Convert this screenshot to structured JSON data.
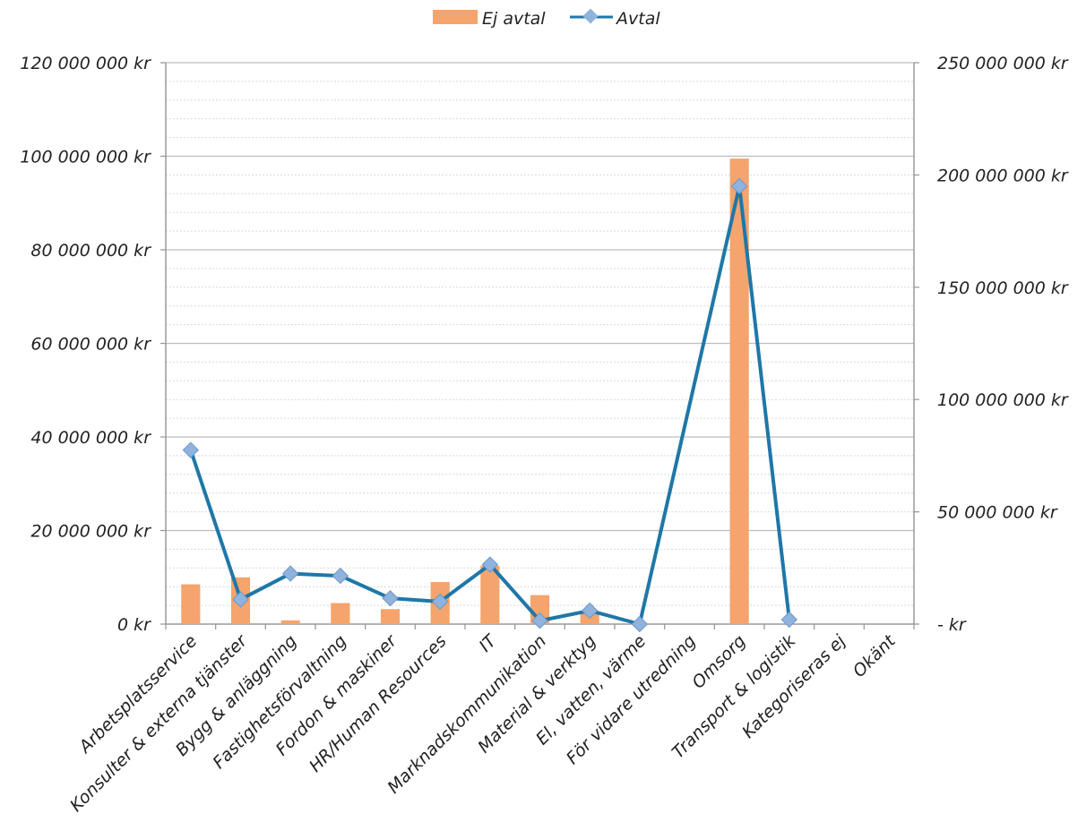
{
  "chart_data": {
    "type": "bar",
    "categories": [
      "Arbetsplatsservice",
      "Konsulter & externa tjänster",
      "Bygg & anläggning",
      "Fastighetsförvaltning",
      "Fordon & maskiner",
      "HR/Human Resources",
      "IT",
      "Marknadskommunikation",
      "Material & verktyg",
      "El, vatten, värme",
      "För vidare utredning",
      "Omsorg",
      "Transport & logistik",
      "Kategoriseras ej",
      "Okänt"
    ],
    "series": [
      {
        "name": "Ej avtal",
        "type": "bar",
        "axis": "left",
        "color": "#f4a46c",
        "values": [
          8500000,
          10000000,
          800000,
          4500000,
          3200000,
          9000000,
          12500000,
          6200000,
          2500000,
          0,
          0,
          99500000,
          0,
          0,
          0
        ]
      },
      {
        "name": "Avtal",
        "type": "line",
        "axis": "right",
        "color": "#1f77a8",
        "marker_color": "#8fb3dd",
        "values": [
          77500000,
          11000000,
          22500000,
          21500000,
          11500000,
          10000000,
          26500000,
          1500000,
          6000000,
          0,
          null,
          195000000,
          2000000,
          null,
          null
        ]
      }
    ],
    "y_left": {
      "ylim": [
        0,
        120000000
      ],
      "ticks": [
        0,
        20000000,
        40000000,
        60000000,
        80000000,
        100000000,
        120000000
      ],
      "tick_labels": [
        "0 kr",
        "20 000 000 kr",
        "40 000 000 kr",
        "60 000 000 kr",
        "80 000 000 kr",
        "100 000 000 kr",
        "120 000 000 kr"
      ]
    },
    "y_right": {
      "ylim": [
        0,
        250000000
      ],
      "ticks": [
        0,
        50000000,
        100000000,
        150000000,
        200000000,
        250000000
      ],
      "tick_labels": [
        "-   kr",
        "50 000 000 kr",
        "100 000 000 kr",
        "150 000 000 kr",
        "200 000 000 kr",
        "250 000 000 kr"
      ]
    },
    "legend": {
      "position": "top",
      "entries": [
        "Ej avtal",
        "Avtal"
      ]
    },
    "grid": true
  }
}
